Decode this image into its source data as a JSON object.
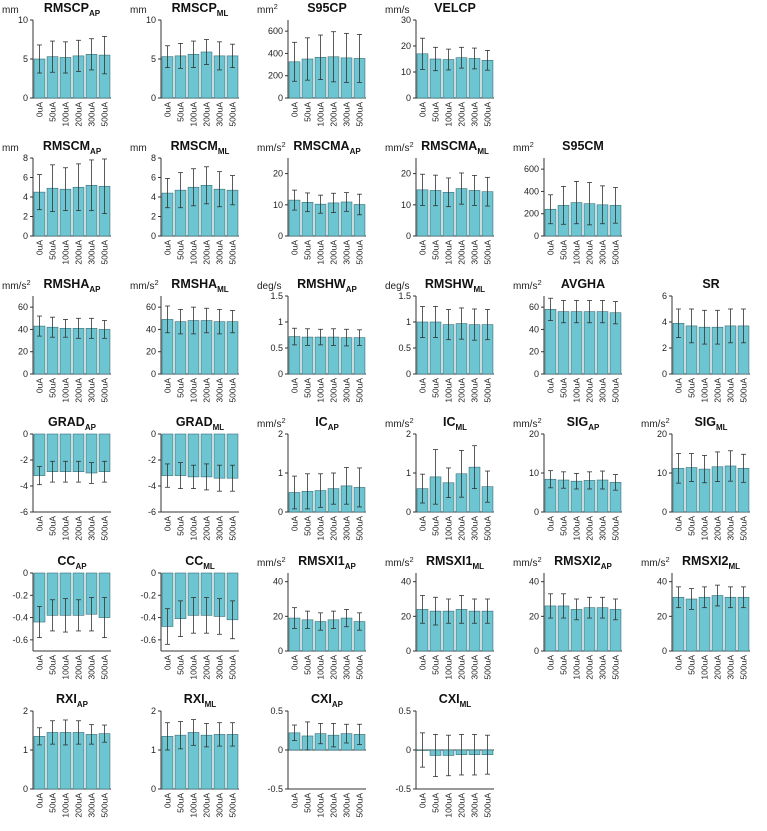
{
  "figure": {
    "bar_color": "#6cc5d1",
    "bar_stroke": "#3a6f77",
    "axis_color": "#333333",
    "error_bar_color": "#333333"
  },
  "chart_data": [
    {
      "type": "bar",
      "title": "RMSCP",
      "subscript": "AP",
      "unit": "mm",
      "categories": [
        "0uA",
        "50uA",
        "100uA",
        "200uA",
        "300uA",
        "500uA"
      ],
      "ylim": [
        0,
        10
      ],
      "yticks": [
        0,
        5,
        10
      ],
      "values": [
        5.0,
        5.3,
        5.2,
        5.4,
        5.6,
        5.5
      ],
      "errors": [
        1.8,
        2.0,
        2.0,
        2.0,
        2.0,
        2.4
      ]
    },
    {
      "type": "bar",
      "title": "RMSCP",
      "subscript": "ML",
      "unit": "mm",
      "categories": [
        "0uA",
        "50uA",
        "100uA",
        "200uA",
        "300uA",
        "500uA"
      ],
      "ylim": [
        0,
        10
      ],
      "yticks": [
        0,
        5,
        10
      ],
      "values": [
        5.3,
        5.4,
        5.6,
        5.9,
        5.4,
        5.4
      ],
      "errors": [
        1.4,
        1.6,
        1.7,
        1.6,
        1.8,
        1.5
      ]
    },
    {
      "type": "bar",
      "title": "S95CP",
      "subscript": "",
      "unit": "mm2",
      "categories": [
        "0uA",
        "50uA",
        "100uA",
        "200uA",
        "300uA",
        "500uA"
      ],
      "ylim": [
        0,
        700
      ],
      "yticks": [
        0,
        200,
        400,
        600
      ],
      "values": [
        325,
        350,
        365,
        370,
        360,
        355
      ],
      "errors": [
        175,
        190,
        200,
        225,
        220,
        215
      ]
    },
    {
      "type": "bar",
      "title": "VELCP",
      "subscript": "",
      "unit": "mm/s",
      "categories": [
        "0uA",
        "50uA",
        "100uA",
        "200uA",
        "300uA",
        "500uA"
      ],
      "ylim": [
        0,
        30
      ],
      "yticks": [
        0,
        10,
        20,
        30
      ],
      "values": [
        17,
        15,
        14.8,
        15.5,
        15.2,
        14.5
      ],
      "errors": [
        6,
        4.5,
        4,
        4,
        4,
        3.8
      ]
    },
    {
      "type": "bar",
      "title": "RMSCM",
      "subscript": "AP",
      "unit": "mm",
      "categories": [
        "0uA",
        "50uA",
        "100uA",
        "200uA",
        "300uA",
        "500uA"
      ],
      "ylim": [
        0,
        8
      ],
      "yticks": [
        0,
        2,
        4,
        6,
        8
      ],
      "values": [
        4.5,
        4.9,
        4.8,
        5.0,
        5.2,
        5.1
      ],
      "errors": [
        1.8,
        2.4,
        2.2,
        2.4,
        2.6,
        2.8
      ]
    },
    {
      "type": "bar",
      "title": "RMSCM",
      "subscript": "ML",
      "unit": "mm",
      "categories": [
        "0uA",
        "50uA",
        "100uA",
        "200uA",
        "300uA",
        "500uA"
      ],
      "ylim": [
        0,
        8
      ],
      "yticks": [
        0,
        2,
        4,
        6,
        8
      ],
      "values": [
        4.4,
        4.7,
        5.0,
        5.2,
        4.8,
        4.7
      ],
      "errors": [
        1.5,
        1.8,
        1.9,
        1.9,
        1.8,
        1.5
      ]
    },
    {
      "type": "bar",
      "title": "RMSCMA",
      "subscript": "AP",
      "unit": "mm/s2",
      "categories": [
        "0uA",
        "50uA",
        "100uA",
        "200uA",
        "300uA",
        "500uA"
      ],
      "ylim": [
        0,
        25
      ],
      "yticks": [
        0,
        10,
        20
      ],
      "values": [
        11.5,
        10.8,
        10.2,
        10.6,
        10.9,
        10.1
      ],
      "errors": [
        3.2,
        3.0,
        2.9,
        3.1,
        3.0,
        3.3
      ]
    },
    {
      "type": "bar",
      "title": "RMSCMA",
      "subscript": "ML",
      "unit": "mm/s2",
      "categories": [
        "0uA",
        "50uA",
        "100uA",
        "200uA",
        "300uA",
        "500uA"
      ],
      "ylim": [
        0,
        25
      ],
      "yticks": [
        0,
        10,
        20
      ],
      "values": [
        14.8,
        14.6,
        14.0,
        15.2,
        14.6,
        14.2
      ],
      "errors": [
        5.0,
        4.9,
        4.6,
        5.0,
        4.8,
        4.6
      ]
    },
    {
      "type": "bar",
      "title": "S95CM",
      "subscript": "",
      "unit": "mm2",
      "categories": [
        "0uA",
        "50uA",
        "100uA",
        "200uA",
        "300uA",
        "500uA"
      ],
      "ylim": [
        0,
        700
      ],
      "yticks": [
        0,
        200,
        400,
        600
      ],
      "values": [
        240,
        275,
        300,
        290,
        280,
        275
      ],
      "errors": [
        130,
        170,
        190,
        190,
        170,
        160
      ]
    },
    {
      "type": "bar",
      "title": "RMSHA",
      "subscript": "AP",
      "unit": "mm/s2",
      "categories": [
        "0uA",
        "50uA",
        "100uA",
        "200uA",
        "300uA",
        "500uA"
      ],
      "ylim": [
        0,
        70
      ],
      "yticks": [
        0,
        20,
        40,
        60
      ],
      "values": [
        43,
        42,
        41,
        41,
        41,
        40
      ],
      "errors": [
        9,
        9,
        8,
        9,
        9,
        8
      ]
    },
    {
      "type": "bar",
      "title": "RMSHA",
      "subscript": "ML",
      "unit": "mm/s2",
      "categories": [
        "0uA",
        "50uA",
        "100uA",
        "200uA",
        "300uA",
        "500uA"
      ],
      "ylim": [
        0,
        70
      ],
      "yticks": [
        0,
        20,
        40,
        60
      ],
      "values": [
        49,
        47,
        48,
        48,
        47,
        47
      ],
      "errors": [
        12,
        11,
        12,
        11,
        11,
        10
      ]
    },
    {
      "type": "bar",
      "title": "RMSHW",
      "subscript": "AP",
      "unit": "deg/s",
      "categories": [
        "0uA",
        "50uA",
        "100uA",
        "200uA",
        "300uA",
        "500uA"
      ],
      "ylim": [
        0,
        1.5
      ],
      "yticks": [
        0,
        0.5,
        1,
        1.5
      ],
      "values": [
        0.72,
        0.71,
        0.71,
        0.71,
        0.7,
        0.7
      ],
      "errors": [
        0.16,
        0.16,
        0.15,
        0.16,
        0.16,
        0.15
      ]
    },
    {
      "type": "bar",
      "title": "RMSHW",
      "subscript": "ML",
      "unit": "deg/s",
      "categories": [
        "0uA",
        "50uA",
        "100uA",
        "200uA",
        "300uA",
        "500uA"
      ],
      "ylim": [
        0,
        1.5
      ],
      "yticks": [
        0,
        0.5,
        1,
        1.5
      ],
      "values": [
        1.0,
        1.0,
        0.95,
        0.97,
        0.95,
        0.95
      ],
      "errors": [
        0.3,
        0.3,
        0.29,
        0.3,
        0.3,
        0.29
      ]
    },
    {
      "type": "bar",
      "title": "AVGHA",
      "subscript": "",
      "unit": "mm/s2",
      "categories": [
        "0uA",
        "50uA",
        "100uA",
        "200uA",
        "300uA",
        "500uA"
      ],
      "ylim": [
        0,
        70
      ],
      "yticks": [
        0,
        20,
        40,
        60
      ],
      "values": [
        58,
        56,
        56,
        56,
        56,
        55
      ],
      "errors": [
        10,
        10,
        10,
        10,
        10,
        10
      ]
    },
    {
      "type": "bar",
      "title": "SR",
      "subscript": "",
      "unit": "",
      "categories": [
        "0uA",
        "50uA",
        "100uA",
        "200uA",
        "300uA",
        "500uA"
      ],
      "ylim": [
        0,
        6
      ],
      "yticks": [
        0,
        2,
        4,
        6
      ],
      "values": [
        3.9,
        3.7,
        3.6,
        3.6,
        3.7,
        3.7
      ],
      "errors": [
        1.1,
        1.3,
        1.3,
        1.3,
        1.3,
        1.3
      ]
    },
    {
      "type": "bar",
      "title": "GRAD",
      "subscript": "AP",
      "unit": "",
      "categories": [
        "0uA",
        "50uA",
        "100uA",
        "200uA",
        "300uA",
        "500uA"
      ],
      "ylim": [
        -6,
        0
      ],
      "yticks": [
        0,
        -2,
        -4,
        -6
      ],
      "values": [
        -3.2,
        -2.9,
        -2.9,
        -2.9,
        -3.0,
        -2.9
      ],
      "errors": [
        0.7,
        0.8,
        0.8,
        0.8,
        0.8,
        0.8
      ]
    },
    {
      "type": "bar",
      "title": "GRAD",
      "subscript": "ML",
      "unit": "",
      "categories": [
        "0uA",
        "50uA",
        "100uA",
        "200uA",
        "300uA",
        "500uA"
      ],
      "ylim": [
        -6,
        0
      ],
      "yticks": [
        0,
        -2,
        -4,
        -6
      ],
      "values": [
        -3.2,
        -3.2,
        -3.3,
        -3.3,
        -3.4,
        -3.4
      ],
      "errors": [
        0.9,
        1.0,
        0.9,
        1.0,
        1.0,
        1.0
      ]
    },
    {
      "type": "bar",
      "title": "IC",
      "subscript": "AP",
      "unit": "mm/s2",
      "categories": [
        "0uA",
        "50uA",
        "100uA",
        "200uA",
        "300uA",
        "500uA"
      ],
      "ylim": [
        0,
        2
      ],
      "yticks": [
        0,
        1,
        2
      ],
      "values": [
        0.5,
        0.53,
        0.55,
        0.6,
        0.67,
        0.63
      ],
      "errors": [
        0.42,
        0.45,
        0.43,
        0.4,
        0.47,
        0.5
      ]
    },
    {
      "type": "bar",
      "title": "IC",
      "subscript": "ML",
      "unit": "mm/s2",
      "categories": [
        "0uA",
        "50uA",
        "100uA",
        "200uA",
        "300uA",
        "500uA"
      ],
      "ylim": [
        0,
        2
      ],
      "yticks": [
        0,
        1,
        2
      ],
      "values": [
        0.6,
        0.9,
        0.75,
        0.98,
        1.15,
        0.65
      ],
      "errors": [
        0.37,
        0.7,
        0.38,
        0.6,
        0.55,
        0.4
      ]
    },
    {
      "type": "bar",
      "title": "SIG",
      "subscript": "AP",
      "unit": "mm/s2",
      "categories": [
        "0uA",
        "50uA",
        "100uA",
        "200uA",
        "300uA",
        "500uA"
      ],
      "ylim": [
        0,
        20
      ],
      "yticks": [
        0,
        10,
        20
      ],
      "values": [
        8.4,
        8.2,
        7.9,
        8.1,
        8.2,
        7.6
      ],
      "errors": [
        2.2,
        2.1,
        2.0,
        2.2,
        2.3,
        2.0
      ]
    },
    {
      "type": "bar",
      "title": "SIG",
      "subscript": "ML",
      "unit": "mm/s2",
      "categories": [
        "0uA",
        "50uA",
        "100uA",
        "200uA",
        "300uA",
        "500uA"
      ],
      "ylim": [
        0,
        20
      ],
      "yticks": [
        0,
        10,
        20
      ],
      "values": [
        11.2,
        11.4,
        11.0,
        11.6,
        11.8,
        11.2
      ],
      "errors": [
        3.8,
        3.6,
        3.5,
        3.8,
        3.9,
        3.6
      ]
    },
    {
      "type": "bar",
      "title": "CC",
      "subscript": "AP",
      "unit": "",
      "categories": [
        "0uA",
        "50uA",
        "100uA",
        "200uA",
        "300uA",
        "500uA"
      ],
      "ylim": [
        -0.7,
        0
      ],
      "yticks": [
        0,
        -0.2,
        -0.4,
        -0.6
      ],
      "values": [
        -0.44,
        -0.38,
        -0.38,
        -0.38,
        -0.37,
        -0.4
      ],
      "errors": [
        0.14,
        0.14,
        0.15,
        0.14,
        0.15,
        0.18
      ]
    },
    {
      "type": "bar",
      "title": "CC",
      "subscript": "ML",
      "unit": "",
      "categories": [
        "0uA",
        "50uA",
        "100uA",
        "200uA",
        "300uA",
        "500uA"
      ],
      "ylim": [
        -0.7,
        0
      ],
      "yticks": [
        0,
        -0.2,
        -0.4,
        -0.6
      ],
      "values": [
        -0.48,
        -0.41,
        -0.38,
        -0.38,
        -0.39,
        -0.42
      ],
      "errors": [
        0.16,
        0.16,
        0.16,
        0.16,
        0.16,
        0.17
      ]
    },
    {
      "type": "bar",
      "title": "RMSXI1",
      "subscript": "AP",
      "unit": "mm/s2",
      "categories": [
        "0uA",
        "50uA",
        "100uA",
        "200uA",
        "300uA",
        "500uA"
      ],
      "ylim": [
        0,
        45
      ],
      "yticks": [
        0,
        20,
        40
      ],
      "values": [
        19,
        18,
        17,
        18,
        19,
        17
      ],
      "errors": [
        6,
        5,
        5,
        5,
        5,
        5
      ]
    },
    {
      "type": "bar",
      "title": "RMSXI1",
      "subscript": "ML",
      "unit": "mm/s2",
      "categories": [
        "0uA",
        "50uA",
        "100uA",
        "200uA",
        "300uA",
        "500uA"
      ],
      "ylim": [
        0,
        45
      ],
      "yticks": [
        0,
        20,
        40
      ],
      "values": [
        24,
        23,
        23,
        24,
        23,
        23
      ],
      "errors": [
        8,
        8,
        7,
        8,
        7,
        7
      ]
    },
    {
      "type": "bar",
      "title": "RMSXI2",
      "subscript": "AP",
      "unit": "mm/s2",
      "categories": [
        "0uA",
        "50uA",
        "100uA",
        "200uA",
        "300uA",
        "500uA"
      ],
      "ylim": [
        0,
        45
      ],
      "yticks": [
        0,
        20,
        40
      ],
      "values": [
        26,
        26,
        24,
        25,
        25,
        24
      ],
      "errors": [
        7,
        7,
        6,
        6,
        6,
        6
      ]
    },
    {
      "type": "bar",
      "title": "RMSXI2",
      "subscript": "ML",
      "unit": "mm/s2",
      "categories": [
        "0uA",
        "50uA",
        "100uA",
        "200uA",
        "300uA",
        "500uA"
      ],
      "ylim": [
        0,
        45
      ],
      "yticks": [
        0,
        20,
        40
      ],
      "values": [
        31,
        30,
        31,
        32,
        31,
        31
      ],
      "errors": [
        6,
        6,
        6,
        6,
        6,
        6
      ]
    },
    {
      "type": "bar",
      "title": "RXI",
      "subscript": "AP",
      "unit": "",
      "categories": [
        "0uA",
        "50uA",
        "100uA",
        "200uA",
        "300uA",
        "500uA"
      ],
      "ylim": [
        0,
        2
      ],
      "yticks": [
        0,
        1,
        2
      ],
      "values": [
        1.35,
        1.45,
        1.45,
        1.45,
        1.4,
        1.42
      ],
      "errors": [
        0.22,
        0.3,
        0.32,
        0.3,
        0.25,
        0.22
      ]
    },
    {
      "type": "bar",
      "title": "RXI",
      "subscript": "ML",
      "unit": "",
      "categories": [
        "0uA",
        "50uA",
        "100uA",
        "200uA",
        "300uA",
        "500uA"
      ],
      "ylim": [
        0,
        2
      ],
      "yticks": [
        0,
        1,
        2
      ],
      "values": [
        1.35,
        1.38,
        1.45,
        1.38,
        1.4,
        1.4
      ],
      "errors": [
        0.35,
        0.35,
        0.33,
        0.3,
        0.3,
        0.3
      ]
    },
    {
      "type": "bar",
      "title": "CXI",
      "subscript": "AP",
      "unit": "",
      "categories": [
        "0uA",
        "50uA",
        "100uA",
        "200uA",
        "300uA",
        "500uA"
      ],
      "ylim": [
        -0.5,
        0.5
      ],
      "yticks": [
        -0.5,
        0,
        0.5
      ],
      "values": [
        0.22,
        0.18,
        0.21,
        0.19,
        0.21,
        0.2
      ],
      "errors": [
        0.1,
        0.18,
        0.13,
        0.15,
        0.12,
        0.13
      ]
    },
    {
      "type": "bar",
      "title": "CXI",
      "subscript": "ML",
      "unit": "",
      "categories": [
        "0uA",
        "50uA",
        "100uA",
        "200uA",
        "300uA",
        "500uA"
      ],
      "ylim": [
        -0.5,
        0.5
      ],
      "yticks": [
        -0.5,
        0,
        0.5
      ],
      "values": [
        0.0,
        -0.07,
        -0.07,
        -0.06,
        -0.06,
        -0.06
      ],
      "errors": [
        0.22,
        0.27,
        0.26,
        0.26,
        0.26,
        0.25
      ]
    }
  ]
}
